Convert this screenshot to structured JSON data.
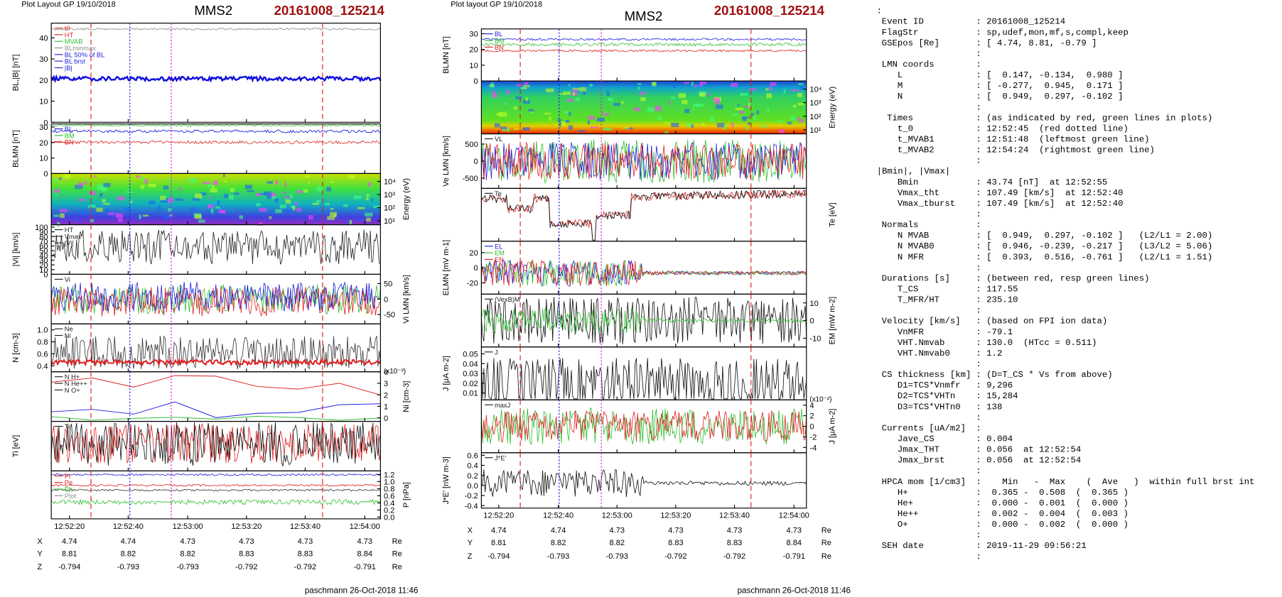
{
  "left_plot": {
    "header": "Plot Layout GP 19/10/2018",
    "spacecraft": "MMS2",
    "event": "20161008_125214",
    "footer": "paschmann 26-Oct-2018 11:46",
    "time_ticks": [
      "12:52:20",
      "12:52:40",
      "12:53:00",
      "12:53:20",
      "12:53:40",
      "12:54:00"
    ],
    "ephem": [
      [
        "X",
        "4.74",
        "4.74",
        "4.73",
        "4.73",
        "4.73",
        "4.73",
        "Re"
      ],
      [
        "Y",
        "8.81",
        "8.82",
        "8.82",
        "8.83",
        "8.83",
        "8.84",
        "Re"
      ],
      [
        "Z",
        "-0.794",
        "-0.793",
        "-0.793",
        "-0.792",
        "-0.792",
        "-0.791",
        "Re"
      ]
    ],
    "panels": [
      {
        "ylabel": "BL,|B| [nT]",
        "side": "left",
        "ylim": [
          0,
          47
        ],
        "yticks": [
          0,
          10,
          20,
          30,
          40
        ],
        "legend": [
          "t0",
          "HT",
          "MVAB",
          "BLminmax",
          "BL 50% of BL",
          "BL brst",
          "|B|"
        ]
      },
      {
        "ylabel": "BLMN [nT]",
        "side": "left",
        "ylim": [
          0,
          32
        ],
        "yticks": [
          0,
          10,
          20,
          30
        ],
        "legend": [
          "BL",
          "BM",
          "BN"
        ]
      },
      {
        "ylabel": "Energy (eV)",
        "side": "right",
        "log": true,
        "ylim": [
          5,
          40000
        ],
        "yticks": [
          {
            "value": 10,
            "label": "10¹"
          },
          {
            "value": 100,
            "label": "10²"
          },
          {
            "value": 1000,
            "label": "10³"
          },
          {
            "value": 10000,
            "label": "10⁴"
          }
        ]
      },
      {
        "ylabel": "|Vi| [km/s]",
        "side": "left",
        "ylim": [
          0,
          105
        ],
        "yticks": [
          0,
          10,
          20,
          30,
          40,
          50,
          60,
          70,
          80,
          90,
          100
        ],
        "legend": [
          "HT",
          "Vmax",
          "|Vi|"
        ]
      },
      {
        "ylabel": "Vi LMN [km/s]",
        "side": "right",
        "ylim": [
          -80,
          80
        ],
        "yticks": [
          50,
          0,
          -50
        ],
        "legend": [
          "Vi"
        ]
      },
      {
        "ylabel": "N [cm-3]",
        "side": "left",
        "ylim": [
          0.3,
          1.1
        ],
        "yticks": [
          0.4,
          0.6,
          0.8,
          {
            "value": 1,
            "label": "1.0"
          }
        ],
        "legend": [
          "Ne",
          "Ni"
        ]
      },
      {
        "ylabel": "Ni [cm-3]",
        "side": "right",
        "ylim": [
          -0.3,
          4
        ],
        "yticks": [
          0,
          1,
          2,
          3,
          4
        ],
        "scale": "(x10⁻³)",
        "legend": [
          "N H+",
          "N He++",
          "N O+"
        ]
      },
      {
        "ylabel": "Ti [eV]",
        "side": "left",
        "legend": [
          "Ti"
        ]
      },
      {
        "ylabel": "P [nPa]",
        "side": "right",
        "ylim": [
          -0.05,
          1.3
        ],
        "yticks": [
          {
            "value": 0,
            "label": "0.0"
          },
          0.2,
          0.4,
          0.6,
          0.8,
          {
            "value": 1,
            "label": "1.0"
          },
          1.2
        ],
        "legend": [
          "Pi",
          "Pe",
          "Pb",
          "Ptot"
        ]
      }
    ]
  },
  "right_plot": {
    "header": "Plot layout GP 19/10/2018",
    "spacecraft": "MMS2",
    "event": "20161008_125214",
    "footer": "paschmann 26-Oct-2018 11:46",
    "time_ticks": [
      "12:52:20",
      "12:52:40",
      "12:53:00",
      "12:53:20",
      "12:53:40",
      "12:54:00"
    ],
    "ephem": [
      [
        "X",
        "4.74",
        "4.74",
        "4.73",
        "4.73",
        "4.73",
        "4.73",
        "Re"
      ],
      [
        "Y",
        "8.81",
        "8.82",
        "8.82",
        "8.83",
        "8.83",
        "8.84",
        "Re"
      ],
      [
        "Z",
        "-0.794",
        "-0.793",
        "-0.793",
        "-0.792",
        "-0.792",
        "-0.791",
        "Re"
      ]
    ],
    "panels": [
      {
        "ylabel": "BLMN [nT]",
        "side": "left",
        "ylim": [
          0,
          33
        ],
        "yticks": [
          0,
          10,
          20,
          30
        ],
        "legend": [
          "BL",
          "BM",
          "BN"
        ]
      },
      {
        "ylabel": "Energy (eV)",
        "side": "right",
        "log": true,
        "ylim": [
          5,
          40000
        ],
        "yticks": [
          {
            "value": 10,
            "label": "10¹"
          },
          {
            "value": 100,
            "label": "10²"
          },
          {
            "value": 1000,
            "label": "10³"
          },
          {
            "value": 10000,
            "label": "10⁴"
          }
        ]
      },
      {
        "ylabel": "Ve LMN [km/s]",
        "side": "left",
        "ylim": [
          -800,
          800
        ],
        "yticks": [
          -500,
          0,
          500
        ],
        "legend": [
          "VL"
        ]
      },
      {
        "ylabel": "Te [eV]",
        "side": "right",
        "legend": [
          "Te"
        ]
      },
      {
        "ylabel": "ELMN [mV m-1]",
        "side": "left",
        "ylim": [
          -35,
          35
        ],
        "yticks": [
          -20,
          0,
          20
        ],
        "legend": [
          "EL",
          "EM",
          "EN"
        ]
      },
      {
        "ylabel": "EM [mW m-2]",
        "side": "right",
        "ylim": [
          -15,
          15
        ],
        "yticks": [
          -10,
          0,
          10
        ],
        "legend": [
          "(VexB)M"
        ]
      },
      {
        "ylabel": "J [μA m-2]",
        "side": "left",
        "ylim": [
          0.003,
          0.057
        ],
        "yticks": [
          0.01,
          0.02,
          0.03,
          0.04,
          0.05
        ],
        "legend": [
          "J"
        ]
      },
      {
        "ylabel": "J [μA m-2]",
        "side": "right",
        "ylim": [
          -5,
          5
        ],
        "yticks": [
          -4,
          -2,
          0,
          2,
          4
        ],
        "scale": "(x10⁻²)",
        "legend": [
          "maxJ"
        ]
      },
      {
        "ylabel": "J*E' [nW m-3]",
        "side": "left",
        "ylim": [
          -0.45,
          0.65
        ],
        "yticks": [
          -0.4,
          -0.2,
          {
            "value": 0,
            "label": "0.0"
          },
          0.2,
          0.4,
          0.6
        ],
        "legend": [
          "J*E'"
        ]
      }
    ]
  },
  "info": {
    "lines": [
      {
        "v": ":"
      },
      {
        "k": "Event ID",
        "v": ": 20161008_125214"
      },
      {
        "k": "FlagStr",
        "v": ": sp,udef,mon,mf,s,compl,keep"
      },
      {
        "k": "GSEpos [Re]",
        "v": ": [ 4.74, 8.81, -0.79 ]"
      },
      {
        "v": ":"
      },
      {
        "k": "LMN coords",
        "v": ":"
      },
      {
        "k": "   L",
        "v": ": [  0.147, -0.134,  0.980 ]"
      },
      {
        "k": "   M",
        "v": ": [ -0.277,  0.945,  0.171 ]"
      },
      {
        "k": "   N",
        "v": ": [  0.949,  0.297, -0.102 ]"
      },
      {
        "v": ":"
      },
      {
        "k": " Times",
        "v": ": (as indicated by red, green lines in plots)"
      },
      {
        "k": "   t_0",
        "v": ": 12:52:45  (red dotted line)"
      },
      {
        "k": "   t_MVAB1",
        "v": ": 12:51:48  (leftmost green line)"
      },
      {
        "k": "   t_MVAB2",
        "v": ": 12:54:24  (rightmost green line)"
      },
      {
        "v": ":"
      },
      {
        "k": "|Bmin|, |Vmax|"
      },
      {
        "k": "   Bmin",
        "v": ": 43.74 [nT]  at 12:52:55"
      },
      {
        "k": "   Vmax_tht",
        "v": ": 107.49 [km/s]  at 12:52:40"
      },
      {
        "k": "   Vmax_tburst",
        "v": ": 107.49 [km/s]  at 12:52:40"
      },
      {
        "v": ":"
      },
      {
        "k": "Normals",
        "v": ":"
      },
      {
        "k": "   N MVAB",
        "v": ": [  0.949,  0.297, -0.102 ]   (L2/L1 = 2.00)"
      },
      {
        "k": "   N MVAB0",
        "v": ": [  0.946, -0.239, -0.217 ]   (L3/L2 = 5.06)"
      },
      {
        "k": "   N MFR",
        "v": ": [  0.393,  0.516, -0.761 ]   (L2/L1 = 1.51)"
      },
      {
        "v": ":"
      },
      {
        "k": "Durations [s]",
        "v": ": (between red, resp green lines)"
      },
      {
        "k": "   T_CS",
        "v": ": 117.55"
      },
      {
        "k": "   T_MFR/HT",
        "v": ": 235.10"
      },
      {
        "v": ":"
      },
      {
        "k": "Velocity [km/s]",
        "v": ": (based on FPI ion data)"
      },
      {
        "k": "   VnMFR",
        "v": ": -79.1"
      },
      {
        "k": "   VHT.Nmvab",
        "v": ": 130.0  (HTcc = 0.511)"
      },
      {
        "k": "   VHT.Nmvab0",
        "v": ": 1.2"
      },
      {
        "v": ":"
      },
      {
        "k": "CS thickness [km]",
        "v": ": (D=T_CS * Vs from above)"
      },
      {
        "k": "   D1=TCS*Vnmfr",
        "v": ": 9,296"
      },
      {
        "k": "   D2=TCS*VHTn",
        "v": ": 15,284"
      },
      {
        "k": "   D3=TCS*VHTn0",
        "v": ": 138"
      },
      {
        "v": ":"
      },
      {
        "k": "Currents [uA/m2]",
        "v": ":"
      },
      {
        "k": "   Jave_CS",
        "v": ": 0.004"
      },
      {
        "k": "   Jmax_THT",
        "v": ": 0.056  at 12:52:54"
      },
      {
        "k": "   Jmax_brst",
        "v": ": 0.056  at 12:52:54"
      },
      {
        "v": ":"
      },
      {
        "k": "HPCA mom [1/cm3]",
        "v": ":    Min   -  Max    (  Ave   )  within full brst int"
      },
      {
        "k": "   H+",
        "v": ":  0.365 -  0.508  (  0.365 )"
      },
      {
        "k": "   He+",
        "v": ":  0.000 -  0.001  (  0.000 )"
      },
      {
        "k": "   He++",
        "v": ":  0.002 -  0.004  (  0.003 )"
      },
      {
        "k": "   O+",
        "v": ":  0.000 -  0.002  (  0.000 )"
      },
      {
        "v": ":"
      },
      {
        "k": "SEH date",
        "v": ": 2019-11-29 09:56:21"
      },
      {
        "v": ":"
      }
    ]
  }
}
